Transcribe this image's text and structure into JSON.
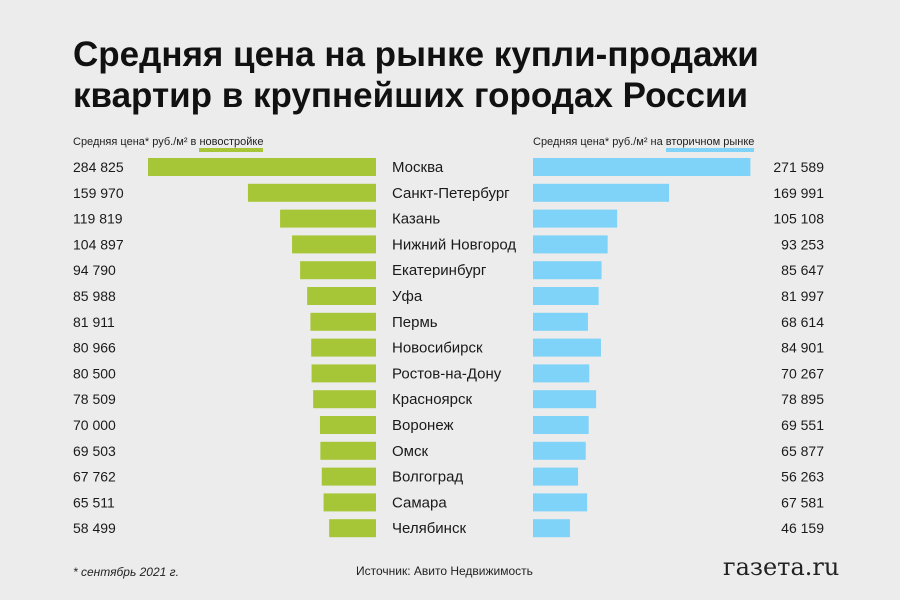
{
  "title": "Средняя цена на рынке купли-продажи квартир в крупнейших городах России",
  "left_header": {
    "prefix": "Средняя цена* руб./м² в ",
    "highlight": "новостройке"
  },
  "right_header": {
    "prefix": "Средняя цена* руб./м² на ",
    "highlight": "вторичном рынке"
  },
  "footnote": "* сентябрь 2021 г.",
  "source": "Источник: Авито Недвижимость",
  "logo": "газета.ru",
  "colors": {
    "new_build": "#a7c637",
    "secondary": "#7fd2f8",
    "background": "#ececec"
  },
  "chart_data": {
    "type": "bar",
    "categories": [
      "Москва",
      "Санкт-Петербург",
      "Казань",
      "Нижний Новгород",
      "Екатеринбург",
      "Уфа",
      "Пермь",
      "Новосибирск",
      "Ростов-на-Дону",
      "Красноярск",
      "Воронеж",
      "Омск",
      "Волгоград",
      "Самара",
      "Челябинск"
    ],
    "series": [
      {
        "name": "новостройке",
        "values": [
          284825,
          159970,
          119819,
          104897,
          94790,
          85988,
          81911,
          80966,
          80500,
          78509,
          70000,
          69503,
          67762,
          65511,
          58499
        ],
        "labels": [
          "284 825",
          "159 970",
          "119 819",
          "104 897",
          "94 790",
          "85 988",
          "81 911",
          "80 966",
          "80 500",
          "78 509",
          "70 000",
          "69 503",
          "67 762",
          "65 511",
          "58 499"
        ],
        "direction": "left"
      },
      {
        "name": "вторичном рынке",
        "values": [
          271589,
          169991,
          105108,
          93253,
          85647,
          81997,
          68614,
          84901,
          70267,
          78895,
          69551,
          65877,
          56263,
          67581,
          46159
        ],
        "labels": [
          "271 589",
          "169 991",
          "105 108",
          "93 253",
          "85 647",
          "81 997",
          "68 614",
          "84 901",
          "70 267",
          "78 895",
          "69 551",
          "65 877",
          "56 263",
          "67 581",
          "46 159"
        ],
        "direction": "right"
      }
    ],
    "grid": false,
    "legend": "top"
  }
}
